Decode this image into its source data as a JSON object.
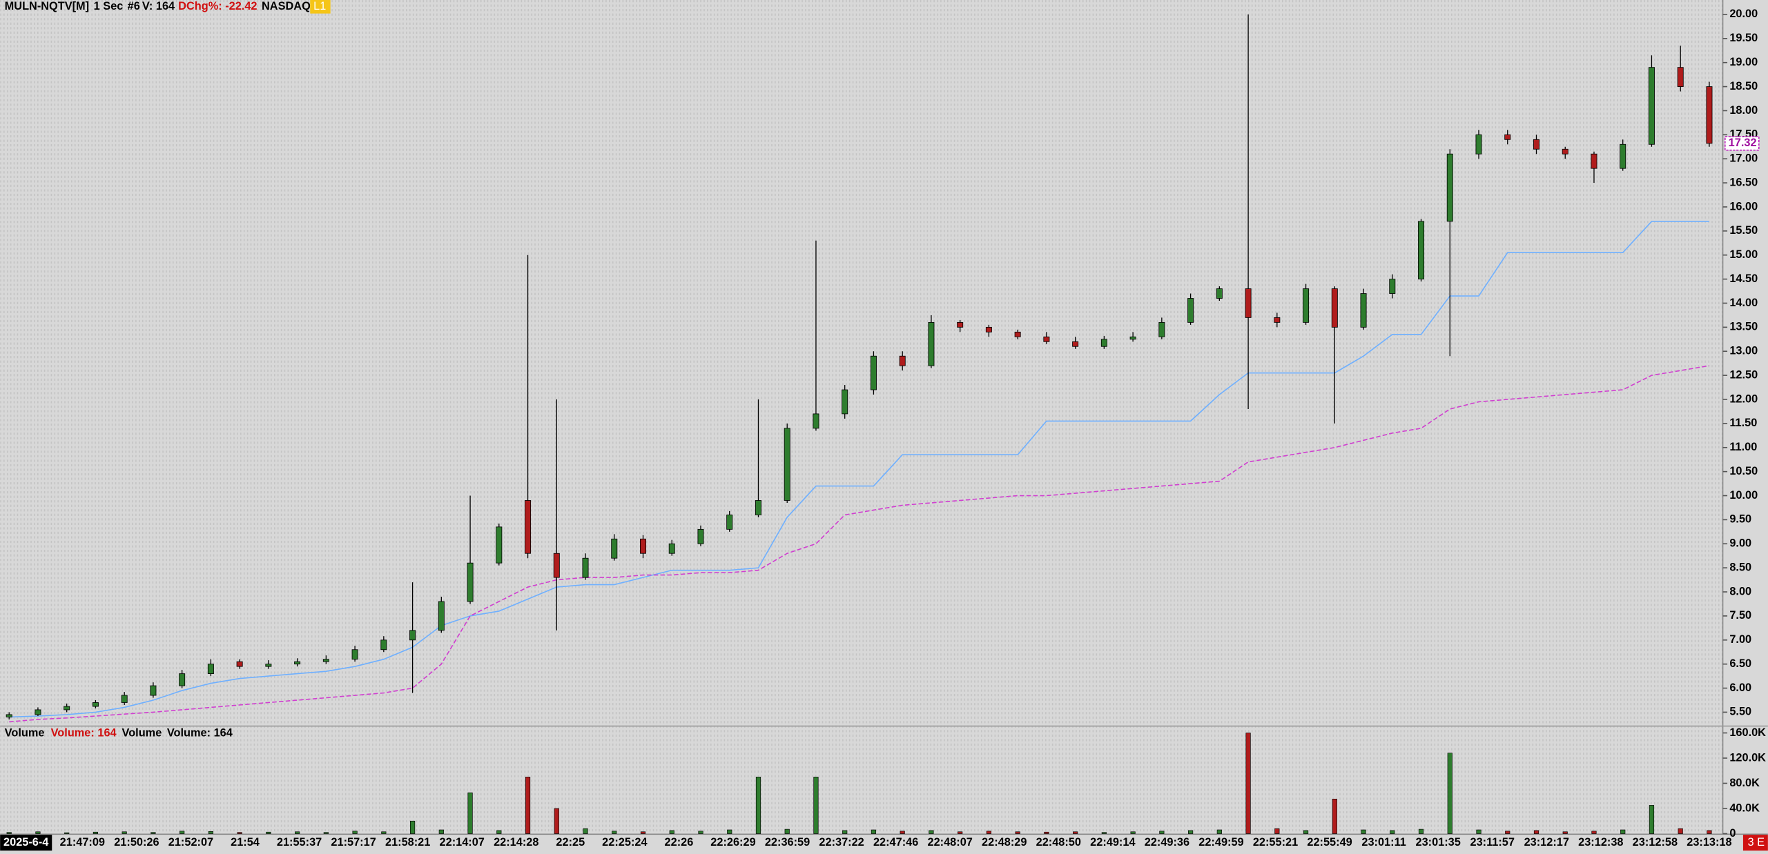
{
  "chart_data": {
    "type": "candlestick",
    "symbol": "MULN-NQTV[M]",
    "interval": "1 Sec",
    "study_id": "#6",
    "volume_text": "V: 164",
    "change_text": "DChg%: -22.42",
    "exchange": "NASDAQ",
    "level": "L1",
    "date_label": "2025-6-4",
    "x_labels": [
      "21:47:09",
      "21:50:26",
      "21:52:07",
      "21:54",
      "21:55:37",
      "21:57:17",
      "21:58:21",
      "22:14:07",
      "22:14:28",
      "22:25",
      "22:25:24",
      "22:26",
      "22:26:29",
      "22:36:59",
      "22:37:22",
      "22:47:46",
      "22:48:07",
      "22:48:29",
      "22:48:50",
      "22:49:14",
      "22:49:36",
      "22:49:59",
      "22:55:21",
      "22:55:49",
      "23:01:11",
      "23:01:35",
      "23:11:57",
      "23:12:17",
      "23:12:38",
      "23:12:58",
      "23:13:18"
    ],
    "open": [
      5.4,
      5.45,
      5.55,
      5.62,
      5.7,
      5.85,
      6.05,
      6.3,
      6.55,
      6.45,
      6.5,
      6.55,
      6.6,
      6.8,
      7.0,
      7.2,
      7.8,
      8.6,
      9.9,
      8.8,
      8.3,
      8.7,
      9.1,
      8.8,
      9.0,
      9.3,
      9.6,
      9.9,
      11.4,
      11.7,
      12.2,
      12.9,
      12.7,
      13.6,
      13.5,
      13.4,
      13.3,
      13.2,
      13.1,
      13.25,
      13.3,
      13.6,
      14.1,
      14.3,
      13.7,
      13.6,
      14.3,
      13.5,
      14.2,
      14.5,
      15.7,
      17.1,
      17.5,
      17.4,
      17.2,
      17.1,
      16.8,
      17.3,
      18.9,
      18.5
    ],
    "high": [
      5.5,
      5.6,
      5.68,
      5.75,
      5.92,
      6.12,
      6.38,
      6.6,
      6.6,
      6.58,
      6.62,
      6.68,
      6.88,
      7.08,
      8.2,
      7.9,
      10.0,
      9.42,
      15.0,
      12.0,
      8.8,
      9.2,
      9.18,
      9.08,
      9.38,
      9.68,
      12.0,
      11.5,
      15.3,
      12.3,
      13.0,
      13.0,
      13.75,
      13.65,
      13.55,
      13.45,
      13.4,
      13.3,
      13.32,
      13.4,
      13.7,
      14.2,
      14.35,
      20.0,
      13.8,
      14.4,
      14.35,
      14.3,
      14.6,
      15.75,
      17.2,
      17.6,
      17.6,
      17.5,
      17.25,
      17.15,
      17.4,
      19.15,
      19.35,
      18.6
    ],
    "low": [
      5.35,
      5.42,
      5.5,
      5.58,
      5.65,
      5.8,
      6.0,
      6.25,
      6.4,
      6.4,
      6.45,
      6.5,
      6.55,
      6.75,
      5.9,
      7.15,
      7.75,
      8.55,
      8.7,
      7.2,
      8.25,
      8.65,
      8.7,
      8.75,
      8.95,
      9.25,
      9.55,
      9.85,
      11.35,
      11.6,
      12.1,
      12.6,
      12.65,
      13.4,
      13.3,
      13.25,
      13.15,
      13.05,
      13.05,
      13.2,
      13.25,
      13.55,
      14.05,
      11.8,
      13.5,
      13.55,
      11.5,
      13.45,
      14.1,
      14.45,
      12.9,
      17.0,
      17.3,
      17.1,
      17.0,
      16.5,
      16.75,
      17.25,
      18.4,
      17.25
    ],
    "close": [
      5.45,
      5.55,
      5.62,
      5.7,
      5.85,
      6.05,
      6.3,
      6.5,
      6.45,
      6.5,
      6.55,
      6.6,
      6.8,
      7.0,
      7.2,
      7.8,
      8.6,
      9.35,
      8.8,
      8.3,
      8.7,
      9.1,
      8.8,
      9.0,
      9.3,
      9.6,
      9.9,
      11.4,
      11.7,
      12.2,
      12.9,
      12.7,
      13.6,
      13.5,
      13.4,
      13.3,
      13.2,
      13.1,
      13.25,
      13.3,
      13.6,
      14.1,
      14.3,
      13.7,
      13.6,
      14.3,
      13.5,
      14.2,
      14.5,
      15.7,
      17.1,
      17.5,
      17.4,
      17.2,
      17.1,
      16.8,
      17.3,
      18.9,
      18.5,
      17.32
    ],
    "up_color": "#2e7d2e",
    "down_color": "#b01c1c",
    "lines": [
      {
        "color": "#6fb0ff",
        "dash": false,
        "values": [
          5.4,
          5.42,
          5.45,
          5.5,
          5.6,
          5.75,
          5.95,
          6.1,
          6.2,
          6.25,
          6.3,
          6.35,
          6.45,
          6.6,
          6.85,
          7.3,
          7.5,
          7.6,
          7.85,
          8.1,
          8.15,
          8.15,
          8.3,
          8.45,
          8.45,
          8.45,
          8.5,
          9.55,
          10.2,
          10.2,
          10.2,
          10.85,
          10.85,
          10.85,
          10.85,
          10.85,
          11.55,
          11.55,
          11.55,
          11.55,
          11.55,
          11.55,
          12.1,
          12.55,
          12.55,
          12.55,
          12.55,
          12.9,
          13.35,
          13.35,
          14.15,
          14.15,
          15.05,
          15.05,
          15.05,
          15.05,
          15.05,
          15.7,
          15.7,
          15.7
        ]
      },
      {
        "color": "#d040d0",
        "dash": true,
        "values": [
          5.3,
          5.35,
          5.38,
          5.42,
          5.46,
          5.5,
          5.55,
          5.6,
          5.65,
          5.7,
          5.75,
          5.8,
          5.85,
          5.9,
          6.0,
          6.5,
          7.5,
          7.8,
          8.1,
          8.25,
          8.3,
          8.3,
          8.35,
          8.35,
          8.4,
          8.4,
          8.45,
          8.8,
          9.0,
          9.6,
          9.7,
          9.8,
          9.85,
          9.9,
          9.95,
          10.0,
          10.0,
          10.05,
          10.1,
          10.15,
          10.2,
          10.25,
          10.3,
          10.7,
          10.8,
          10.9,
          11.0,
          11.15,
          11.3,
          11.4,
          11.8,
          11.95,
          12.0,
          12.05,
          12.1,
          12.15,
          12.2,
          12.5,
          12.6,
          12.7
        ]
      }
    ],
    "ylim": [
      5.2,
      20.3
    ],
    "yticks": [
      {
        "value": 5.5,
        "label": "5.50"
      },
      {
        "value": 6,
        "label": "6.00"
      },
      {
        "value": 6.5,
        "label": "6.50"
      },
      {
        "value": 7,
        "label": "7.00"
      },
      {
        "value": 7.5,
        "label": "7.50"
      },
      {
        "value": 8,
        "label": "8.00"
      },
      {
        "value": 8.5,
        "label": "8.50"
      },
      {
        "value": 9,
        "label": "9.00"
      },
      {
        "value": 9.5,
        "label": "9.50"
      },
      {
        "value": 10,
        "label": "10.00"
      },
      {
        "value": 10.5,
        "label": "10.50"
      },
      {
        "value": 11,
        "label": "11.00"
      },
      {
        "value": 11.5,
        "label": "11.50"
      },
      {
        "value": 12,
        "label": "12.00"
      },
      {
        "value": 12.5,
        "label": "12.50"
      },
      {
        "value": 13,
        "label": "13.00"
      },
      {
        "value": 13.5,
        "label": "13.50"
      },
      {
        "value": 14,
        "label": "14.00"
      },
      {
        "value": 14.5,
        "label": "14.50"
      },
      {
        "value": 15,
        "label": "15.00"
      },
      {
        "value": 15.5,
        "label": "15.50"
      },
      {
        "value": 16,
        "label": "16.00"
      },
      {
        "value": 16.5,
        "label": "16.50"
      },
      {
        "value": 17,
        "label": "17.00"
      },
      {
        "value": 17.5,
        "label": "17.50"
      },
      {
        "value": 18,
        "label": "18.00"
      },
      {
        "value": 18.5,
        "label": "18.50"
      },
      {
        "value": 19,
        "label": "19.00"
      },
      {
        "value": 19.5,
        "label": "19.50"
      },
      {
        "value": 20,
        "label": "20.00"
      }
    ],
    "last_price": 17.32,
    "volume_panel": {
      "labels": [
        "Volume",
        "Volume: 164",
        "Volume",
        "Volume: 164"
      ],
      "values": [
        2000,
        3000,
        1500,
        2500,
        3000,
        2000,
        4000,
        3500,
        2000,
        2500,
        3000,
        2000,
        4000,
        3000,
        20000,
        6000,
        65000,
        5000,
        90000,
        40000,
        8000,
        4000,
        3000,
        5000,
        4000,
        6000,
        90000,
        7000,
        90000,
        5000,
        6000,
        4000,
        5000,
        3000,
        4000,
        3000,
        2500,
        3000,
        2000,
        3000,
        4000,
        5000,
        6000,
        160000,
        8000,
        5000,
        55000,
        6000,
        5000,
        7000,
        128000,
        6000,
        4000,
        5000,
        3000,
        4000,
        6000,
        45000,
        8000,
        5000
      ],
      "ylim": [
        0,
        170000
      ],
      "yticks": [
        0,
        {
          "value": 40000,
          "label": "40.0K"
        },
        {
          "value": 80000,
          "label": "80.0K"
        },
        {
          "value": 120000,
          "label": "120.0K"
        },
        {
          "value": 160000,
          "label": "160.0K"
        }
      ]
    },
    "corner_label": "3 E"
  }
}
